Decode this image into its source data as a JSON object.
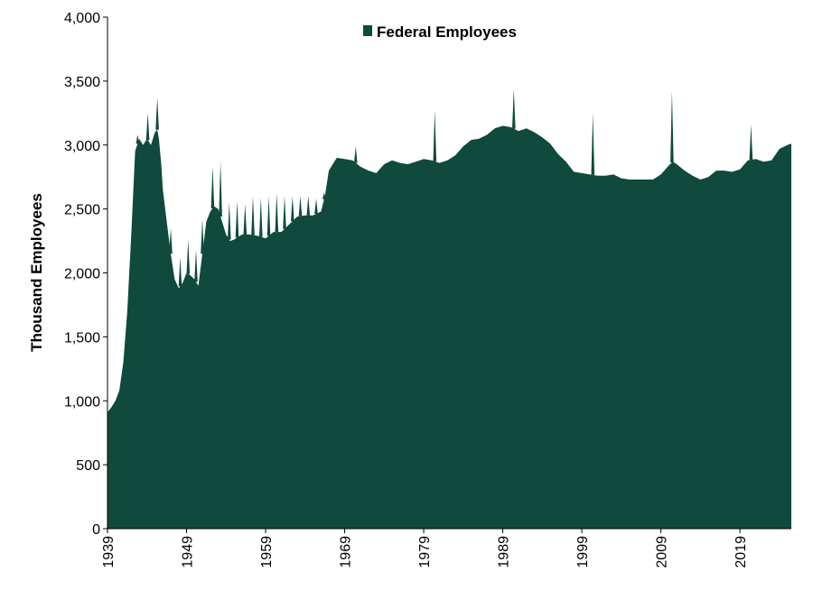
{
  "chart_data": {
    "type": "area",
    "title": "",
    "ylabel": "Thousand Employees",
    "xlabel": "",
    "ylim": [
      0,
      4000
    ],
    "xlim": [
      1939,
      2025.5
    ],
    "y_ticks": [
      0,
      500,
      1000,
      1500,
      2000,
      2500,
      3000,
      3500,
      4000
    ],
    "y_tick_labels": [
      "0",
      "500",
      "1,000",
      "1,500",
      "2,000",
      "2,500",
      "3,000",
      "3,500",
      "4,000"
    ],
    "x_ticks": [
      1939,
      1949,
      1959,
      1969,
      1979,
      1989,
      1999,
      2009,
      2019
    ],
    "x_tick_labels": [
      "1939",
      "1949",
      "1959",
      "1969",
      "1979",
      "1989",
      "1999",
      "2009",
      "2019"
    ],
    "legend_position": "top-center",
    "grid": false,
    "color": "#0f4a3c",
    "series": [
      {
        "name": "Federal Employees",
        "x": [
          1939.0,
          1939.5,
          1940.0,
          1940.5,
          1941.0,
          1941.5,
          1942.0,
          1942.5,
          1943.0,
          1943.5,
          1944.0,
          1944.5,
          1945.0,
          1945.3,
          1945.5,
          1945.8,
          1946.0,
          1946.5,
          1947.0,
          1947.5,
          1948.0,
          1948.5,
          1949.0,
          1949.5,
          1950.0,
          1950.5,
          1951.0,
          1951.5,
          1952.0,
          1952.5,
          1953.0,
          1953.5,
          1954.0,
          1954.5,
          1955.0,
          1956.0,
          1957.0,
          1958.0,
          1959.0,
          1960.0,
          1961.0,
          1962.0,
          1963.0,
          1964.0,
          1965.0,
          1966.0,
          1966.5,
          1967.0,
          1967.5,
          1968.0,
          1969.0,
          1970.0,
          1971.0,
          1972.0,
          1973.0,
          1974.0,
          1975.0,
          1976.0,
          1977.0,
          1978.0,
          1979.0,
          1980.0,
          1981.0,
          1982.0,
          1983.0,
          1984.0,
          1985.0,
          1986.0,
          1987.0,
          1988.0,
          1989.0,
          1990.0,
          1991.0,
          1992.0,
          1993.0,
          1994.0,
          1995.0,
          1996.0,
          1997.0,
          1998.0,
          1999.0,
          2000.0,
          2001.0,
          2002.0,
          2003.0,
          2004.0,
          2005.0,
          2006.0,
          2007.0,
          2008.0,
          2009.0,
          2010.0,
          2010.5,
          2011.0,
          2012.0,
          2013.0,
          2014.0,
          2015.0,
          2016.0,
          2017.0,
          2018.0,
          2019.0,
          2020.0,
          2021.0,
          2022.0,
          2023.0,
          2024.0,
          2025.0,
          2025.5
        ],
        "values": [
          910,
          950,
          1000,
          1080,
          1300,
          1700,
          2300,
          2950,
          3050,
          3000,
          3050,
          3000,
          3100,
          3120,
          3050,
          2850,
          2650,
          2400,
          2150,
          1950,
          1880,
          1920,
          2000,
          1980,
          1950,
          1900,
          2150,
          2400,
          2480,
          2520,
          2500,
          2400,
          2300,
          2250,
          2260,
          2300,
          2300,
          2290,
          2270,
          2320,
          2320,
          2380,
          2440,
          2450,
          2450,
          2480,
          2600,
          2800,
          2850,
          2900,
          2890,
          2880,
          2830,
          2800,
          2780,
          2850,
          2880,
          2860,
          2850,
          2870,
          2890,
          2880,
          2860,
          2880,
          2920,
          2990,
          3040,
          3050,
          3080,
          3130,
          3150,
          3140,
          3110,
          3130,
          3100,
          3060,
          3010,
          2930,
          2870,
          2790,
          2780,
          2770,
          2760,
          2760,
          2770,
          2740,
          2730,
          2730,
          2730,
          2730,
          2770,
          2840,
          2870,
          2850,
          2800,
          2760,
          2730,
          2750,
          2800,
          2800,
          2790,
          2810,
          2880,
          2890,
          2870,
          2880,
          2970,
          3000,
          3010
        ]
      }
    ],
    "spikes": [
      {
        "x": 1942.8,
        "y": 3080
      },
      {
        "x": 1944.1,
        "y": 3250
      },
      {
        "x": 1945.3,
        "y": 3370
      },
      {
        "x": 1947.0,
        "y": 2350
      },
      {
        "x": 1948.2,
        "y": 2120
      },
      {
        "x": 1949.2,
        "y": 2260
      },
      {
        "x": 1950.2,
        "y": 2180
      },
      {
        "x": 1951.0,
        "y": 2420
      },
      {
        "x": 1952.3,
        "y": 2830
      },
      {
        "x": 1953.3,
        "y": 2870
      },
      {
        "x": 1954.4,
        "y": 2550
      },
      {
        "x": 1955.4,
        "y": 2560
      },
      {
        "x": 1956.4,
        "y": 2540
      },
      {
        "x": 1957.4,
        "y": 2600
      },
      {
        "x": 1958.4,
        "y": 2590
      },
      {
        "x": 1959.4,
        "y": 2600
      },
      {
        "x": 1960.4,
        "y": 2620
      },
      {
        "x": 1961.4,
        "y": 2600
      },
      {
        "x": 1962.4,
        "y": 2600
      },
      {
        "x": 1963.4,
        "y": 2600
      },
      {
        "x": 1964.4,
        "y": 2600
      },
      {
        "x": 1965.4,
        "y": 2580
      },
      {
        "x": 1966.4,
        "y": 2630
      },
      {
        "x": 1970.4,
        "y": 2990
      },
      {
        "x": 1980.4,
        "y": 3270
      },
      {
        "x": 1990.4,
        "y": 3440
      },
      {
        "x": 2000.4,
        "y": 3250
      },
      {
        "x": 2010.4,
        "y": 3420
      },
      {
        "x": 2020.4,
        "y": 3160
      }
    ]
  }
}
